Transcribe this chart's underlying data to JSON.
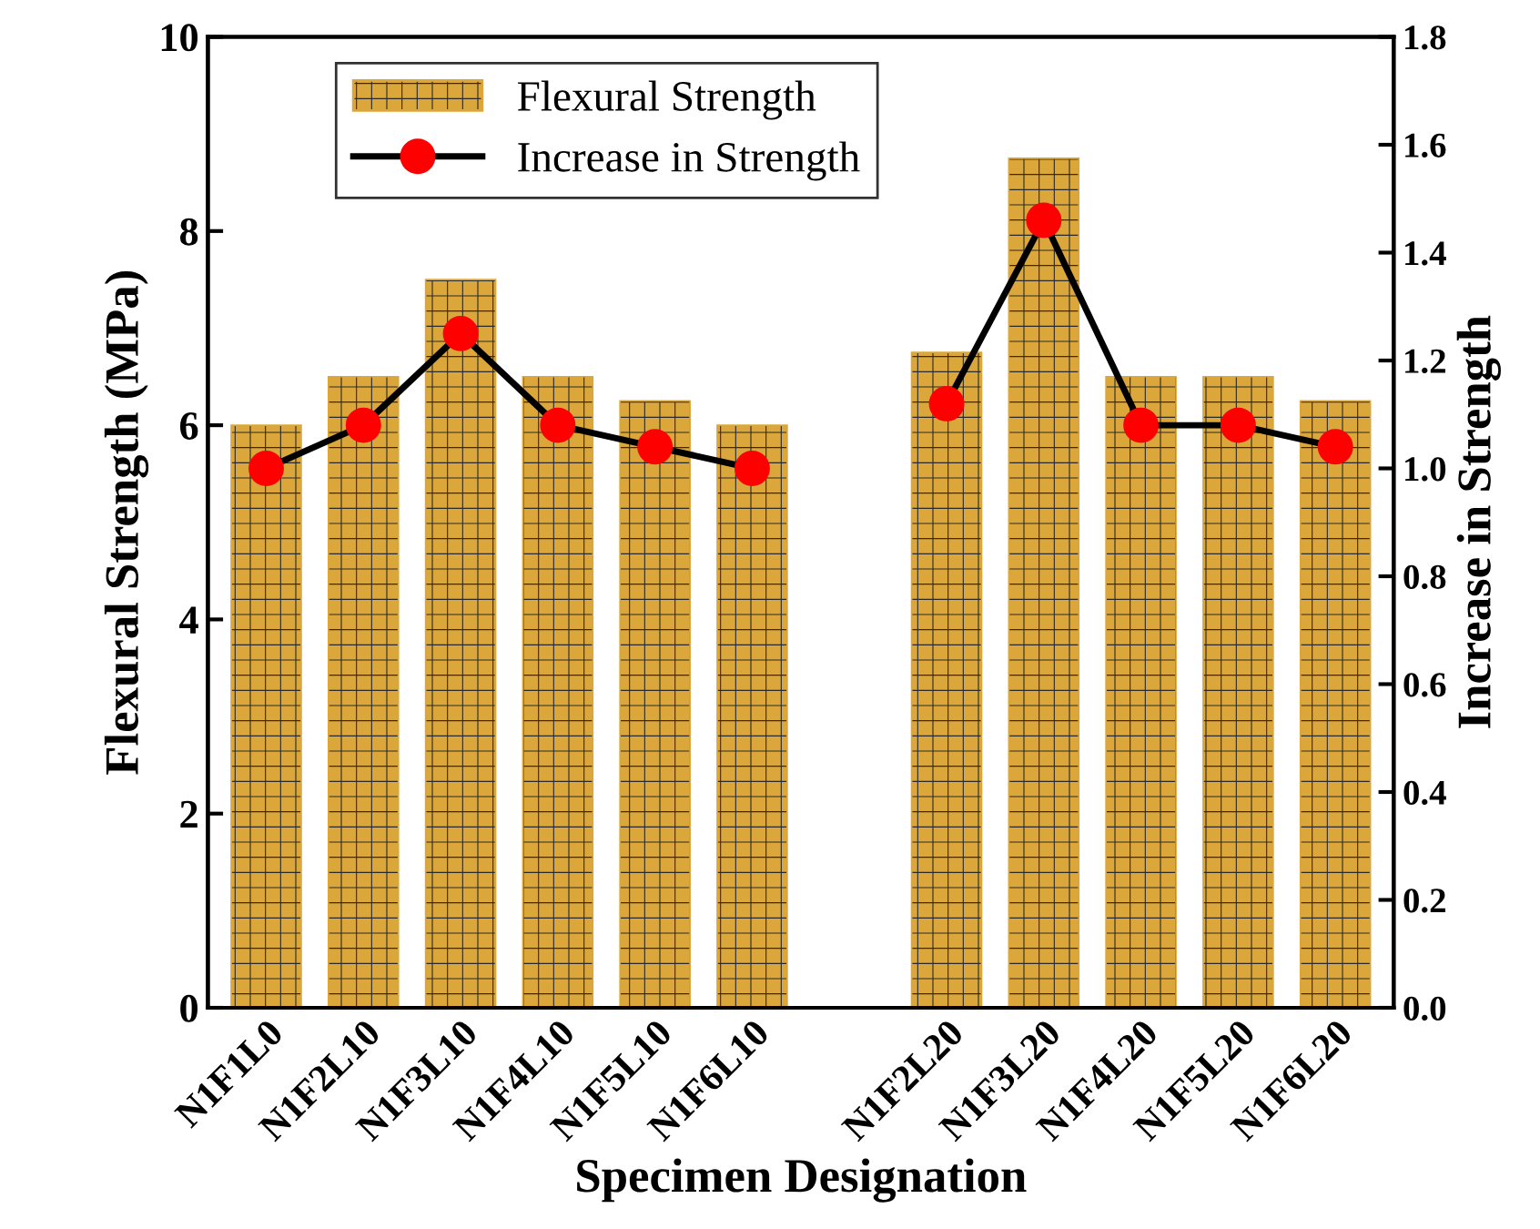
{
  "chart_data": {
    "type": "bar",
    "xlabel": "Specimen Designation",
    "ylabel": "Flexural Strength (MPa)",
    "y2label": "Increase in Strength",
    "categories": [
      "N1F1L0",
      "N1F2L10",
      "N1F3L10",
      "N1F4L10",
      "N1F5L10",
      "N1F6L10",
      null,
      "N1F2L20",
      "N1F3L20",
      "N1F4L20",
      "N1F5L20",
      "N1F6L20"
    ],
    "series": [
      {
        "name": "Flexural Strength",
        "color": "#dba63a",
        "values": [
          6,
          6.5,
          7.5,
          6.5,
          6.25,
          6,
          null,
          6.75,
          8.75,
          6.5,
          6.5,
          6.25
        ]
      },
      {
        "name": "Increase in Strength",
        "type": "line",
        "axis": "y2",
        "color": "#ff0000",
        "marker": "circle",
        "values": [
          1.0,
          1.08,
          1.25,
          1.08,
          1.04,
          1.0,
          null,
          1.12,
          1.46,
          1.08,
          1.08,
          1.04
        ]
      }
    ],
    "ylim": [
      0,
      10
    ],
    "yticks": [
      0,
      2,
      4,
      6,
      8,
      10
    ],
    "y2lim": [
      0,
      1.8
    ],
    "y2ticks": [
      {
        "value": 0,
        "label": "0.0"
      },
      {
        "value": 0.2,
        "label": "0.2"
      },
      {
        "value": 0.4,
        "label": "0.4"
      },
      {
        "value": 0.6,
        "label": "0.6"
      },
      {
        "value": 0.8,
        "label": "0.8"
      },
      {
        "value": 1.0,
        "label": "1.0"
      },
      {
        "value": 1.2,
        "label": "1.2"
      },
      {
        "value": 1.4,
        "label": "1.4"
      },
      {
        "value": 1.6,
        "label": "1.6"
      },
      {
        "value": 1.8,
        "label": "1.8"
      }
    ],
    "grid": false,
    "legend": "top left"
  }
}
